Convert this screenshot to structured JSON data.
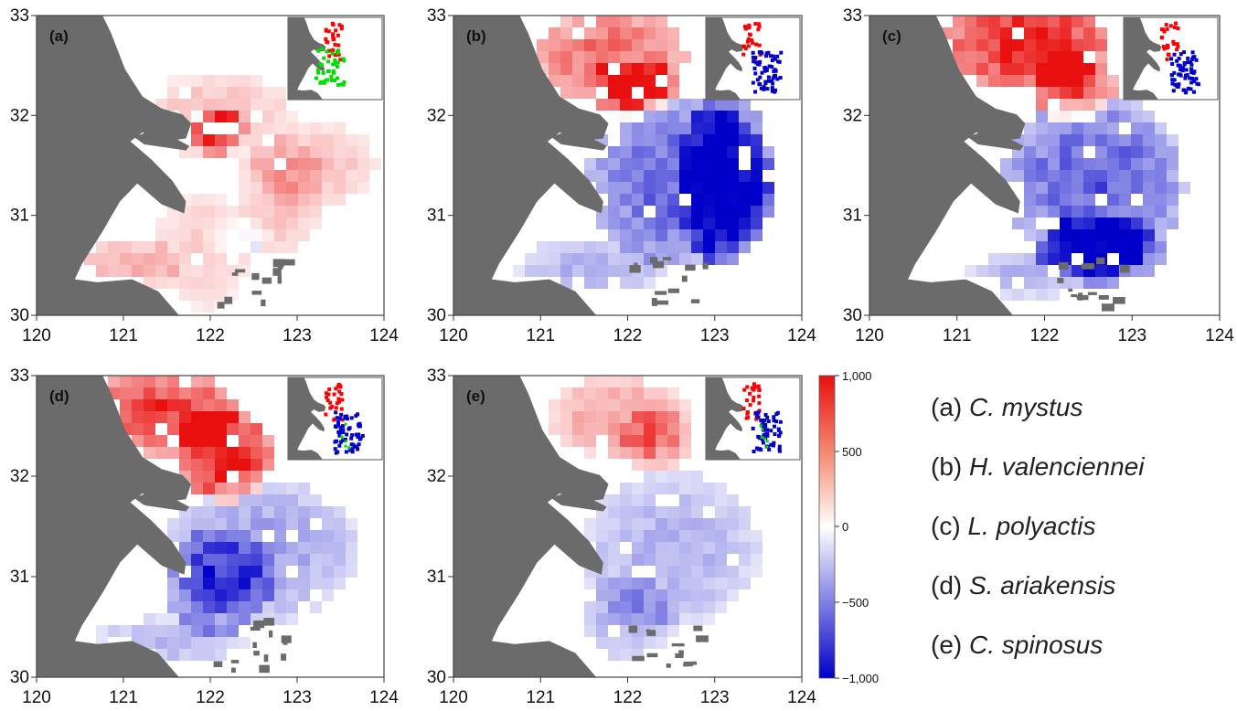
{
  "axes": {
    "x_ticks": [
      "120",
      "121",
      "122",
      "123",
      "124"
    ],
    "y_ticks": [
      "30",
      "31",
      "32",
      "33"
    ]
  },
  "colorbar": {
    "ticks": [
      "1,000",
      "500",
      "0",
      "−500",
      "−1,000"
    ],
    "colors": {
      "high": "#e8100e",
      "mid": "#ffffff",
      "low": "#0000c8"
    }
  },
  "colors": {
    "land": "#6b6b6b",
    "sea": "#ffffff",
    "inset_red": "#ff0000",
    "inset_blue": "#0000c8",
    "inset_green": "#00dd00"
  },
  "panels": [
    {
      "label": "(a)",
      "prefix": "(a) ",
      "species": "C. mystus"
    },
    {
      "label": "(b)",
      "prefix": "(b) ",
      "species": "H. valenciennei"
    },
    {
      "label": "(c)",
      "prefix": "(c) ",
      "species": "L. polyactis"
    },
    {
      "label": "(d)",
      "prefix": "(d) ",
      "species": "S. ariakensis"
    },
    {
      "label": "(e)",
      "prefix": "(e) ",
      "species": "C. spinosus"
    }
  ]
}
